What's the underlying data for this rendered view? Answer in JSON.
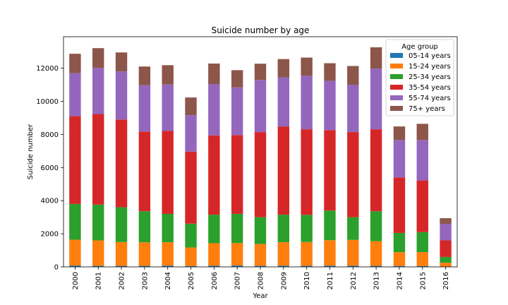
{
  "chart_data": {
    "type": "bar",
    "stacked": true,
    "title": "Suicide number by age",
    "xlabel": "Year",
    "ylabel": "Suicide number",
    "ylim": [
      0,
      13900
    ],
    "yticks": [
      0,
      2000,
      4000,
      6000,
      8000,
      10000,
      12000
    ],
    "categories": [
      "2000",
      "2001",
      "2002",
      "2003",
      "2004",
      "2005",
      "2006",
      "2007",
      "2008",
      "2009",
      "2010",
      "2011",
      "2012",
      "2013",
      "2014",
      "2015",
      "2016"
    ],
    "legend": {
      "title": "Age group",
      "position": "top-right"
    },
    "series": [
      {
        "name": "05-14 years",
        "color": "#1f77b4",
        "values": [
          80,
          60,
          60,
          60,
          70,
          50,
          70,
          80,
          60,
          70,
          60,
          70,
          70,
          60,
          50,
          50,
          20
        ]
      },
      {
        "name": "15-24 years",
        "color": "#ff7f0e",
        "values": [
          1560,
          1540,
          1440,
          1420,
          1420,
          1120,
          1360,
          1360,
          1320,
          1420,
          1440,
          1540,
          1560,
          1490,
          840,
          840,
          230
        ]
      },
      {
        "name": "25-34 years",
        "color": "#2ca02c",
        "values": [
          2160,
          2160,
          2100,
          1880,
          1710,
          1440,
          1720,
          1760,
          1620,
          1660,
          1640,
          1790,
          1370,
          1810,
          1160,
          1210,
          350
        ]
      },
      {
        "name": "35-54 years",
        "color": "#d62728",
        "values": [
          5300,
          5470,
          5300,
          4810,
          5010,
          4350,
          4790,
          4760,
          5140,
          5330,
          5170,
          4860,
          5140,
          4950,
          3350,
          3120,
          1000
        ]
      },
      {
        "name": "55-74 years",
        "color": "#9467bd",
        "values": [
          2600,
          2780,
          2900,
          2800,
          2800,
          2200,
          3100,
          2880,
          3150,
          2970,
          3230,
          2980,
          2860,
          3660,
          2260,
          2440,
          1000
        ]
      },
      {
        "name": "75+ years",
        "color": "#8c564b",
        "values": [
          1170,
          1200,
          1150,
          1130,
          1170,
          1070,
          1240,
          1040,
          980,
          1100,
          1100,
          1060,
          1130,
          1290,
          820,
          980,
          340
        ]
      }
    ]
  }
}
